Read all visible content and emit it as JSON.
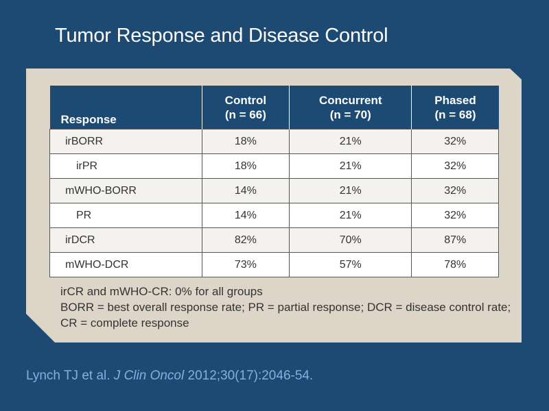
{
  "slide": {
    "title": "Tumor Response and Disease Control"
  },
  "table": {
    "headers": [
      {
        "line1": "",
        "line2": "Response"
      },
      {
        "line1": "Control",
        "line2": "(n = 66)"
      },
      {
        "line1": "Concurrent",
        "line2": "(n = 70)"
      },
      {
        "line1": "Phased",
        "line2": "(n = 68)"
      }
    ],
    "rows": [
      {
        "label": "irBORR",
        "control": "18%",
        "concurrent": "21%",
        "phased": "32%"
      },
      {
        "label": "irPR",
        "control": "18%",
        "concurrent": "21%",
        "phased": "32%"
      },
      {
        "label": "mWHO-BORR",
        "control": "14%",
        "concurrent": "21%",
        "phased": "32%"
      },
      {
        "label": "PR",
        "control": "14%",
        "concurrent": "21%",
        "phased": "32%"
      },
      {
        "label": "irDCR",
        "control": "82%",
        "concurrent": "70%",
        "phased": "87%"
      },
      {
        "label": "mWHO-DCR",
        "control": "73%",
        "concurrent": "57%",
        "phased": "78%"
      }
    ]
  },
  "notes": [
    "irCR and mWHO-CR: 0% for all groups",
    "BORR = best overall response rate; PR = partial response; DCR = disease control rate; CR = complete response"
  ],
  "citation": {
    "authors": "Lynch TJ et al. ",
    "journal": "J Clin Oncol",
    "details": " 2012;30(17):2046-54."
  }
}
